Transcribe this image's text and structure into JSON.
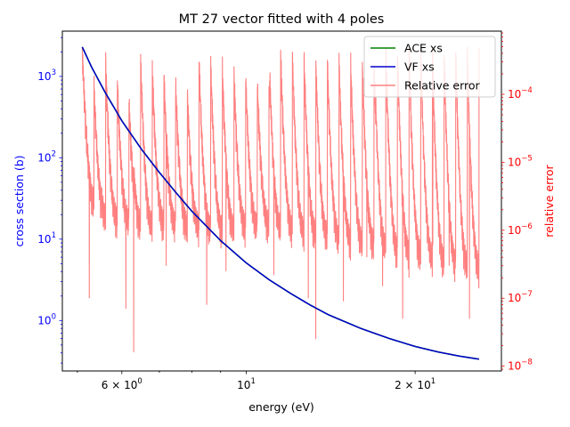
{
  "chart_data": {
    "type": "line",
    "title": "MT 27 vector fitted with 4 poles",
    "xlabel": "energy (eV)",
    "ylabel_left": "cross section (b)",
    "ylabel_right": "relative error",
    "x_scale": "log",
    "y_left_scale": "log",
    "y_right_scale": "log",
    "xlim": [
      4.7,
      28.5
    ],
    "ylim_left": [
      0.24,
      3600
    ],
    "ylim_right": [
      8.5e-09,
      0.00085
    ],
    "grid": false,
    "legend_position": "top-right",
    "x_ticks": [
      {
        "value": 6,
        "base": "6 × 10",
        "exp": "0"
      },
      {
        "value": 10,
        "base": "10",
        "exp": "1"
      },
      {
        "value": 20,
        "base": "2 × 10",
        "exp": "1"
      }
    ],
    "y_left_ticks": [
      {
        "value": 1,
        "base": "10",
        "exp": "0"
      },
      {
        "value": 10,
        "base": "10",
        "exp": "1"
      },
      {
        "value": 100,
        "base": "10",
        "exp": "2"
      },
      {
        "value": 1000,
        "base": "10",
        "exp": "3"
      }
    ],
    "y_right_ticks": [
      {
        "value": 1e-08,
        "base": "10",
        "exp": "−8"
      },
      {
        "value": 1e-07,
        "base": "10",
        "exp": "−7"
      },
      {
        "value": 1e-06,
        "base": "10",
        "exp": "−6"
      },
      {
        "value": 1e-05,
        "base": "10",
        "exp": "−5"
      },
      {
        "value": 0.0001,
        "base": "10",
        "exp": "−4"
      }
    ],
    "series": [
      {
        "name": "ACE xs",
        "axis": "left",
        "color": "#008000",
        "x": [
          5.1,
          5.3,
          5.6,
          6.0,
          6.5,
          7.0,
          7.5,
          8.0,
          9.0,
          10.0,
          11.0,
          12.0,
          13.0,
          14.0,
          16.0,
          18.0,
          20.0,
          22.0,
          24.0,
          26.0
        ],
        "y": [
          2300,
          1300,
          640,
          285,
          128,
          66,
          37,
          22,
          9.6,
          5.1,
          3.15,
          2.15,
          1.55,
          1.18,
          0.8,
          0.6,
          0.48,
          0.41,
          0.365,
          0.335
        ]
      },
      {
        "name": "VF xs",
        "axis": "left",
        "color": "#0000cc",
        "x": [
          5.1,
          5.3,
          5.6,
          6.0,
          6.5,
          7.0,
          7.5,
          8.0,
          9.0,
          10.0,
          11.0,
          12.0,
          13.0,
          14.0,
          16.0,
          18.0,
          20.0,
          22.0,
          24.0,
          26.0
        ],
        "y": [
          2300,
          1300,
          640,
          285,
          128,
          66,
          37,
          22,
          9.6,
          5.1,
          3.15,
          2.15,
          1.55,
          1.18,
          0.8,
          0.6,
          0.48,
          0.41,
          0.365,
          0.335
        ]
      },
      {
        "name": "Relative error",
        "axis": "right",
        "color": "#ff8080",
        "oscillation_count": 34,
        "envelope_x": [
          5.1,
          5.5,
          5.51,
          6.3,
          6.31,
          8.1,
          8.11,
          11.0,
          11.01,
          17.0,
          17.01,
          26.0
        ],
        "envelope_upper": [
          0.00045,
          7e-05,
          0.00044,
          6e-05,
          0.0004,
          9e-05,
          0.00038,
          0.00012,
          0.00043,
          0.00025,
          0.00052,
          0.00035
        ],
        "floor_x": [
          5.1,
          5.3,
          5.5,
          5.8,
          6.2,
          6.6,
          7.0,
          8.0,
          9.0,
          10.0,
          11.0,
          13.0,
          15.0,
          18.0,
          22.0,
          26.0
        ],
        "floor_y": [
          1e-05,
          3e-06,
          1.8e-06,
          1.6e-06,
          1.5e-06,
          1.2e-06,
          1.4e-06,
          1.2e-06,
          1.1e-06,
          1.2e-06,
          1.3e-06,
          1e-06,
          8e-07,
          6e-07,
          4e-07,
          3e-07
        ],
        "deep_dips": [
          {
            "x": 5.25,
            "y": 1e-07
          },
          {
            "x": 6.3,
            "y": 1.6e-08
          },
          {
            "x": 6.1,
            "y": 7e-08
          },
          {
            "x": 7.2,
            "y": 3e-07
          },
          {
            "x": 8.5,
            "y": 8e-08
          },
          {
            "x": 9.2,
            "y": 2.5e-07
          },
          {
            "x": 11.2,
            "y": 2.2e-07
          },
          {
            "x": 12.9,
            "y": 1e-07
          },
          {
            "x": 13.3,
            "y": 2.5e-08
          },
          {
            "x": 14.9,
            "y": 9e-08
          },
          {
            "x": 16.4,
            "y": 4e-07
          },
          {
            "x": 17.5,
            "y": 1.5e-07
          },
          {
            "x": 19.0,
            "y": 5e-08
          },
          {
            "x": 19.5,
            "y": 2e-07
          },
          {
            "x": 21.5,
            "y": 6e-07
          },
          {
            "x": 23.0,
            "y": 3e-07
          },
          {
            "x": 25.0,
            "y": 5e-08
          }
        ]
      }
    ]
  }
}
